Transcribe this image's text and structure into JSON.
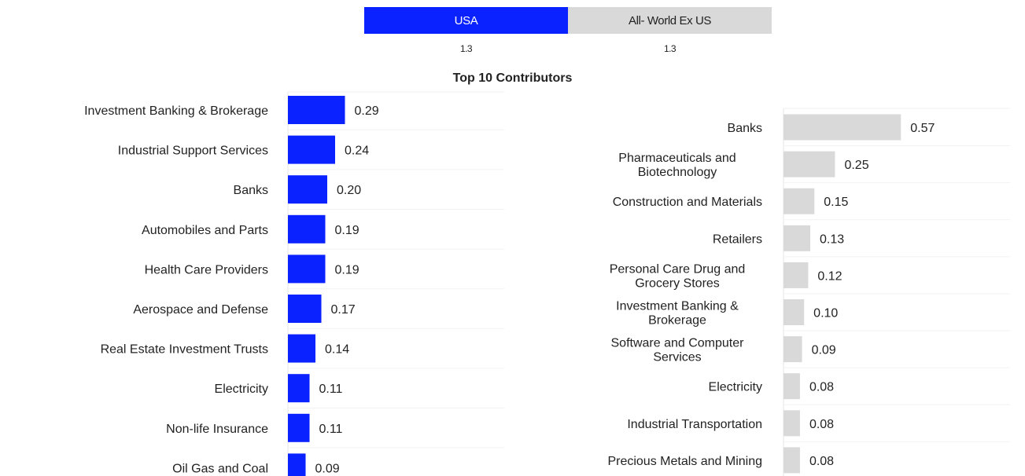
{
  "legend": {
    "usa_label": "USA",
    "world_label": "All- World Ex US",
    "usa_total": "1.3",
    "world_total": "1.3"
  },
  "title": "Top 10 Contributors",
  "colors": {
    "usa": "#0a22ff",
    "world": "#d9d9d9"
  },
  "chart_data": [
    {
      "type": "bar",
      "orientation": "horizontal",
      "series": [
        {
          "name": "USA",
          "values": [
            0.29,
            0.24,
            0.2,
            0.19,
            0.19,
            0.17,
            0.14,
            0.11,
            0.11,
            0.09
          ]
        }
      ],
      "categories": [
        "Investment Banking & Brokerage",
        "Industrial Support Services",
        "Banks",
        "Automobiles and Parts",
        "Health Care Providers",
        "Aerospace and Defense",
        "Real Estate Investment Trusts",
        "Electricity",
        "Non-life Insurance",
        "Oil Gas and Coal"
      ],
      "value_labels": [
        "0.29",
        "0.24",
        "0.20",
        "0.19",
        "0.19",
        "0.17",
        "0.14",
        "0.11",
        "0.11",
        "0.09"
      ],
      "xlim": [
        0,
        1.1
      ],
      "grid": false
    },
    {
      "type": "bar",
      "orientation": "horizontal",
      "series": [
        {
          "name": "All- World Ex US",
          "values": [
            0.57,
            0.25,
            0.15,
            0.13,
            0.12,
            0.1,
            0.09,
            0.08,
            0.08,
            0.08
          ]
        }
      ],
      "categories": [
        [
          "Banks"
        ],
        [
          "Pharmaceuticals and",
          "Biotechnology"
        ],
        [
          "Construction and Materials"
        ],
        [
          "Retailers"
        ],
        [
          "Personal Care Drug and",
          "Grocery Stores"
        ],
        [
          "Investment Banking &",
          "Brokerage"
        ],
        [
          "Software and Computer",
          "Services"
        ],
        [
          "Electricity"
        ],
        [
          "Industrial Transportation"
        ],
        [
          "Precious Metals and Mining"
        ]
      ],
      "value_labels": [
        "0.57",
        "0.25",
        "0.15",
        "0.13",
        "0.12",
        "0.10",
        "0.09",
        "0.08",
        "0.08",
        "0.08"
      ],
      "xlim": [
        0,
        1.1
      ],
      "grid": false
    }
  ]
}
